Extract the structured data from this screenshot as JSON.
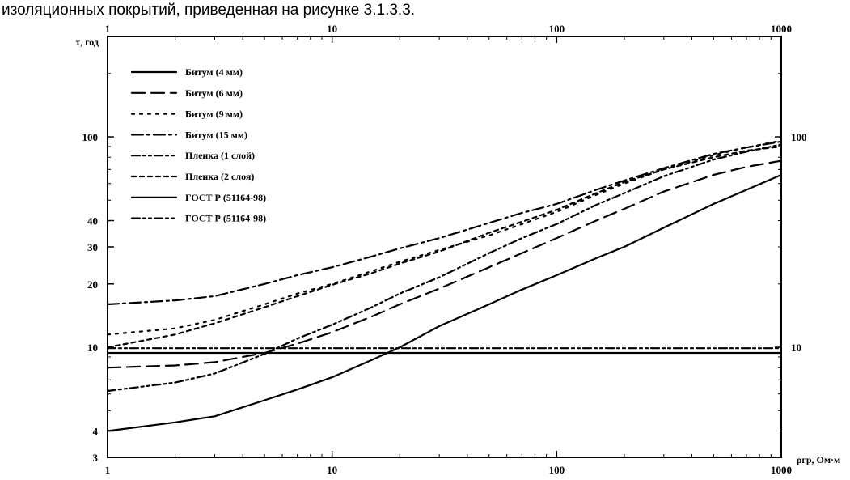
{
  "intro_text": "изоляционных покрытий, приведенная на рисунке 3.1.3.3.",
  "chart_data": {
    "type": "line",
    "title": "",
    "xlabel": "ρгр, Ом·м",
    "ylabel": "τ, год",
    "xscale": "log",
    "yscale": "log",
    "xlim": [
      1,
      1000
    ],
    "ylim": [
      3,
      300
    ],
    "x_ticks": [
      {
        "value": 1,
        "label": "1"
      },
      {
        "value": 10,
        "label": "10"
      },
      {
        "value": 100,
        "label": "100"
      },
      {
        "value": 1000,
        "label": "1000"
      }
    ],
    "y_ticks_left": [
      {
        "value": 3,
        "label": "3"
      },
      {
        "value": 4,
        "label": "4"
      },
      {
        "value": 10,
        "label": "10"
      },
      {
        "value": 20,
        "label": "20"
      },
      {
        "value": 30,
        "label": "30"
      },
      {
        "value": 40,
        "label": "40"
      },
      {
        "value": 100,
        "label": "100"
      }
    ],
    "y_ticks_right": [
      {
        "value": 10,
        "label": "10"
      },
      {
        "value": 100,
        "label": "100"
      }
    ],
    "grid": false,
    "legend_position": "top-left",
    "series": [
      {
        "name": "Битум (4 мм)",
        "dash": "solid",
        "color": "#000000",
        "x": [
          1,
          2,
          3,
          5,
          7,
          10,
          15,
          20,
          30,
          50,
          70,
          100,
          150,
          200,
          300,
          500,
          700,
          1000
        ],
        "y": [
          4.0,
          4.4,
          4.7,
          5.6,
          6.3,
          7.2,
          8.7,
          10.0,
          12.6,
          16.0,
          18.8,
          22.0,
          26.5,
          30.0,
          37.0,
          48.0,
          56.0,
          66.0
        ]
      },
      {
        "name": "Битум (6 мм)",
        "dash": "dashed",
        "color": "#000000",
        "x": [
          1,
          2,
          3,
          5,
          7,
          10,
          15,
          20,
          30,
          50,
          70,
          100,
          150,
          200,
          300,
          500,
          700,
          1000
        ],
        "y": [
          8.0,
          8.2,
          8.5,
          9.4,
          10.4,
          11.8,
          14.0,
          16.0,
          19.0,
          24.0,
          28.0,
          33.0,
          40.0,
          45.5,
          55.0,
          66.0,
          72.0,
          77.0
        ]
      },
      {
        "name": "Битум (9 мм)",
        "dash": "dotted",
        "color": "#000000",
        "x": [
          1,
          2,
          3,
          5,
          7,
          10,
          15,
          20,
          30,
          50,
          70,
          100,
          150,
          200,
          300,
          500,
          700,
          1000
        ],
        "y": [
          11.5,
          12.3,
          13.5,
          16.0,
          18.0,
          20.0,
          23.0,
          25.5,
          29.0,
          34.0,
          38.5,
          44.0,
          53.0,
          60.0,
          70.0,
          82.0,
          89.0,
          96.0
        ]
      },
      {
        "name": "Битум (15 мм)",
        "dash": "dash-dot",
        "color": "#000000",
        "x": [
          1,
          2,
          3,
          5,
          7,
          10,
          15,
          20,
          30,
          50,
          70,
          100,
          150,
          200,
          300,
          500,
          700,
          1000
        ],
        "y": [
          16.0,
          16.7,
          17.5,
          20.0,
          22.0,
          24.0,
          27.0,
          29.5,
          33.0,
          39.0,
          43.5,
          48.0,
          56.0,
          62.0,
          71.0,
          83.0,
          89.0,
          95.0
        ]
      },
      {
        "name": "Пленка (1 слой)",
        "dash": "dash-dot-dot",
        "color": "#000000",
        "x": [
          1,
          2,
          3,
          5,
          7,
          10,
          15,
          20,
          30,
          50,
          70,
          100,
          150,
          200,
          300,
          500,
          700,
          1000
        ],
        "y": [
          6.2,
          6.8,
          7.5,
          9.3,
          11.0,
          12.8,
          15.5,
          18.0,
          21.5,
          28.0,
          33.0,
          38.5,
          47.5,
          54.0,
          65.0,
          78.0,
          85.0,
          92.0
        ]
      },
      {
        "name": "Пленка (2 слоя)",
        "dash": "short-dash",
        "color": "#000000",
        "x": [
          1,
          2,
          3,
          5,
          7,
          10,
          15,
          20,
          30,
          50,
          70,
          100,
          150,
          200,
          300,
          500,
          700,
          1000
        ],
        "y": [
          10.0,
          11.5,
          13.0,
          15.5,
          17.5,
          19.8,
          22.5,
          25.0,
          28.5,
          35.0,
          39.5,
          45.0,
          54.0,
          61.0,
          70.0,
          80.0,
          86.0,
          90.0
        ]
      },
      {
        "name": "ГОСТ Р (51164-98)",
        "dash": "solid",
        "color": "#000000",
        "x": [
          1,
          1000
        ],
        "y": [
          9.4,
          9.4
        ]
      },
      {
        "name": "ГОСТ Р (51164-98)",
        "dash": "dash-dot-dot",
        "color": "#000000",
        "x": [
          1,
          1000
        ],
        "y": [
          9.9,
          9.9
        ]
      }
    ]
  }
}
